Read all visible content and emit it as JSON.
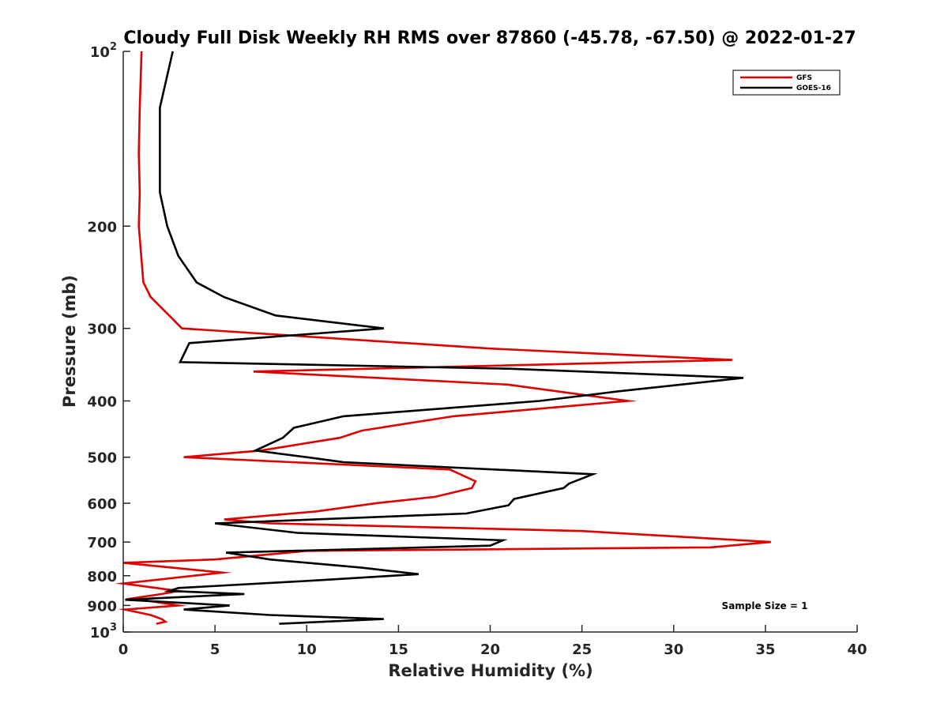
{
  "chart_data": {
    "type": "line",
    "title": "Cloudy Full Disk Weekly RH RMS over 87860 (-45.78, -67.50) @ 2022-01-27",
    "xlabel": "Relative Humidity (%)",
    "ylabel": "Pressure (mb)",
    "xlim": [
      0,
      40
    ],
    "ylim": [
      100,
      1000
    ],
    "yscale": "log",
    "yreversed": true,
    "x_ticks": [
      "0",
      "5",
      "10",
      "15",
      "20",
      "25",
      "30",
      "35",
      "40"
    ],
    "y_ticks": [
      {
        "value": 100,
        "label": "10",
        "sup": "2"
      },
      {
        "value": 200,
        "label": "200",
        "sup": ""
      },
      {
        "value": 300,
        "label": "300",
        "sup": ""
      },
      {
        "value": 400,
        "label": "400",
        "sup": ""
      },
      {
        "value": 500,
        "label": "500",
        "sup": ""
      },
      {
        "value": 600,
        "label": "600",
        "sup": ""
      },
      {
        "value": 700,
        "label": "700",
        "sup": ""
      },
      {
        "value": 800,
        "label": "800",
        "sup": ""
      },
      {
        "value": 900,
        "label": "900",
        "sup": ""
      },
      {
        "value": 1000,
        "label": "10",
        "sup": "3"
      }
    ],
    "grid": false,
    "legend_position": "top-right",
    "series": [
      {
        "name": "GFS",
        "color": "#e00000",
        "points": [
          [
            1.0,
            100
          ],
          [
            0.9,
            125
          ],
          [
            0.85,
            150
          ],
          [
            0.9,
            175
          ],
          [
            0.85,
            200
          ],
          [
            1.1,
            250
          ],
          [
            1.5,
            265
          ],
          [
            2.5,
            285
          ],
          [
            3.2,
            300
          ],
          [
            20.0,
            325
          ],
          [
            33.2,
            340
          ],
          [
            7.1,
            356
          ],
          [
            21.0,
            375
          ],
          [
            27.5,
            400
          ],
          [
            18.0,
            425
          ],
          [
            13.0,
            450
          ],
          [
            11.8,
            463
          ],
          [
            7.5,
            487
          ],
          [
            3.3,
            500
          ],
          [
            17.8,
            525
          ],
          [
            19.2,
            550
          ],
          [
            19.0,
            565
          ],
          [
            17.0,
            585
          ],
          [
            13.8,
            600
          ],
          [
            10.5,
            620
          ],
          [
            5.5,
            640
          ],
          [
            8.0,
            650
          ],
          [
            25.0,
            670
          ],
          [
            35.3,
            700
          ],
          [
            32.0,
            715
          ],
          [
            10.0,
            725
          ],
          [
            5.0,
            750
          ],
          [
            0.0,
            760
          ],
          [
            5.4,
            790
          ],
          [
            0.0,
            825
          ],
          [
            3.0,
            850
          ],
          [
            2.1,
            860
          ],
          [
            0.5,
            875
          ],
          [
            3.0,
            900
          ],
          [
            0.1,
            915
          ],
          [
            1.5,
            935
          ],
          [
            2.1,
            950
          ],
          [
            2.3,
            960
          ],
          [
            1.8,
            968
          ]
        ]
      },
      {
        "name": "GOES-16",
        "color": "#000000",
        "points": [
          [
            2.7,
            100
          ],
          [
            2.0,
            125
          ],
          [
            2.0,
            150
          ],
          [
            2.0,
            175
          ],
          [
            2.4,
            200
          ],
          [
            3.0,
            225
          ],
          [
            4.0,
            250
          ],
          [
            5.5,
            265
          ],
          [
            8.3,
            285
          ],
          [
            14.2,
            300
          ],
          [
            3.6,
            318
          ],
          [
            3.1,
            343
          ],
          [
            21.0,
            352
          ],
          [
            33.8,
            365
          ],
          [
            27.0,
            385
          ],
          [
            22.7,
            400
          ],
          [
            12.0,
            425
          ],
          [
            9.3,
            445
          ],
          [
            8.7,
            463
          ],
          [
            7.2,
            487
          ],
          [
            10.0,
            500
          ],
          [
            12.0,
            510
          ],
          [
            25.6,
            535
          ],
          [
            24.3,
            555
          ],
          [
            24.0,
            565
          ],
          [
            21.3,
            590
          ],
          [
            21.0,
            605
          ],
          [
            18.7,
            625
          ],
          [
            5.0,
            650
          ],
          [
            9.5,
            675
          ],
          [
            20.7,
            695
          ],
          [
            20.0,
            710
          ],
          [
            5.6,
            730
          ],
          [
            8.0,
            750
          ],
          [
            13.0,
            775
          ],
          [
            16.1,
            795
          ],
          [
            10.5,
            815
          ],
          [
            3.0,
            840
          ],
          [
            2.5,
            850
          ],
          [
            6.6,
            860
          ],
          [
            0.1,
            880
          ],
          [
            5.8,
            900
          ],
          [
            3.3,
            915
          ],
          [
            8.0,
            935
          ],
          [
            14.2,
            950
          ],
          [
            8.5,
            968
          ]
        ]
      }
    ],
    "annotation": "Sample Size = 1"
  }
}
